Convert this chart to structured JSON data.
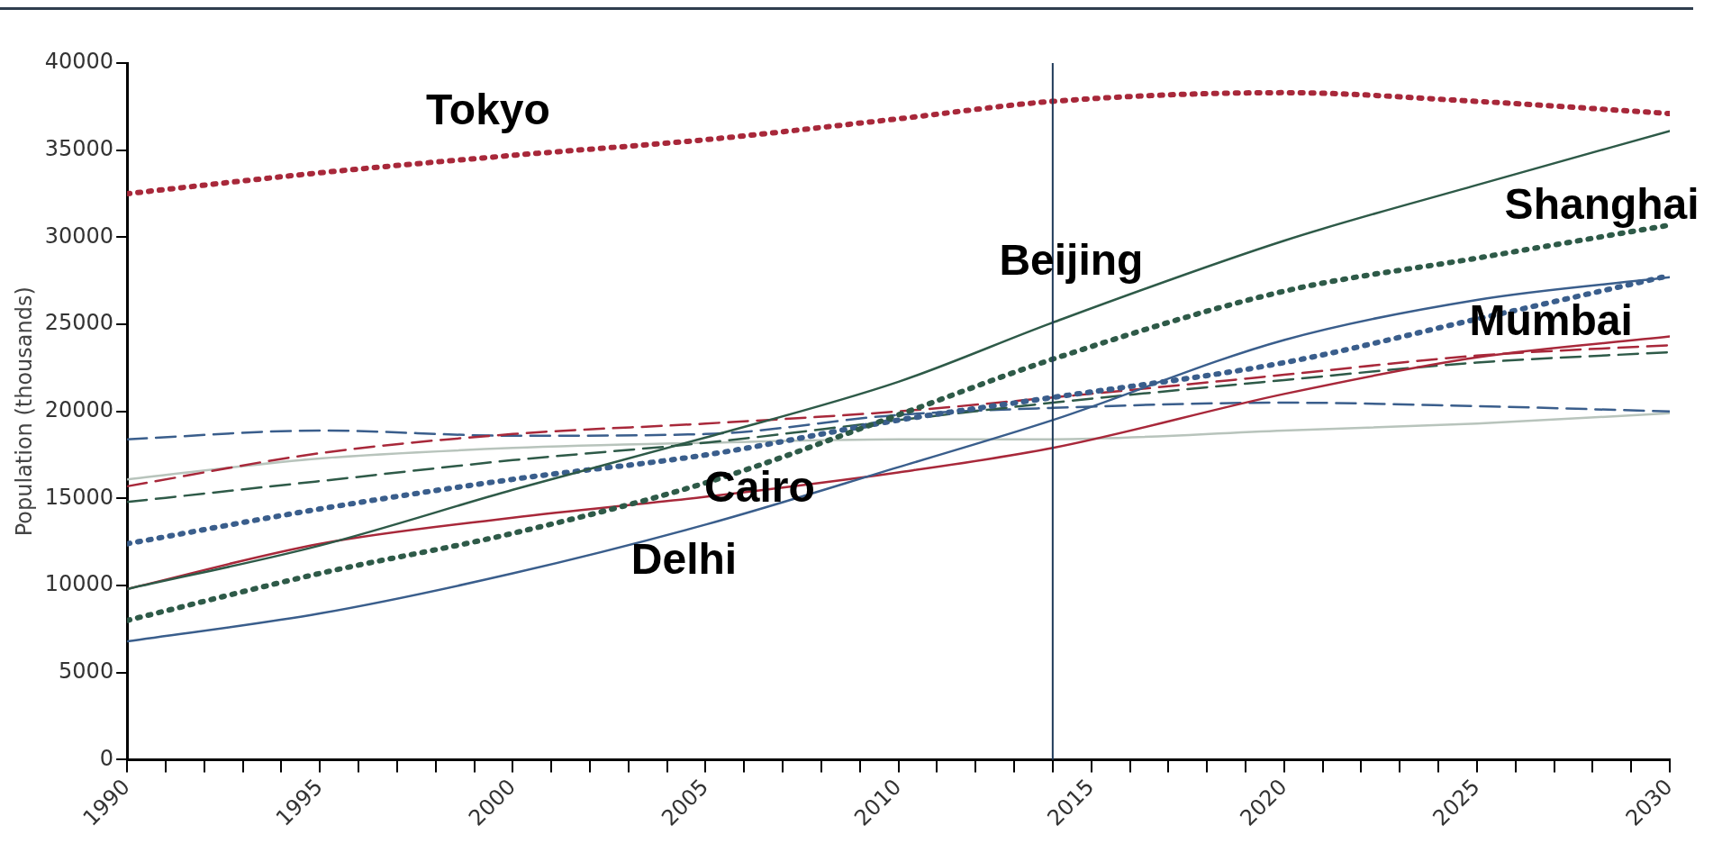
{
  "chart_data": {
    "type": "line",
    "ylabel": "Population (thousands)",
    "x": [
      1990,
      1995,
      2000,
      2005,
      2010,
      2014,
      2020,
      2025,
      2030
    ],
    "xlim": [
      1990,
      2030
    ],
    "xticks": [
      1990,
      {
        "value": 1991,
        "label": null
      },
      {
        "value": 1992,
        "label": null
      },
      {
        "value": 1993,
        "label": null
      },
      {
        "value": 1994,
        "label": null
      },
      1995,
      {
        "value": 1996,
        "label": null
      },
      {
        "value": 1997,
        "label": null
      },
      {
        "value": 1998,
        "label": null
      },
      {
        "value": 1999,
        "label": null
      },
      2000,
      {
        "value": 2001,
        "label": null
      },
      {
        "value": 2002,
        "label": null
      },
      {
        "value": 2003,
        "label": null
      },
      {
        "value": 2004,
        "label": null
      },
      2005,
      {
        "value": 2006,
        "label": null
      },
      {
        "value": 2007,
        "label": null
      },
      {
        "value": 2008,
        "label": null
      },
      {
        "value": 2009,
        "label": null
      },
      2010,
      {
        "value": 2011,
        "label": null
      },
      {
        "value": 2012,
        "label": null
      },
      {
        "value": 2013,
        "label": null
      },
      {
        "value": 2014,
        "label": null
      },
      2015,
      {
        "value": 2016,
        "label": null
      },
      {
        "value": 2017,
        "label": null
      },
      {
        "value": 2018,
        "label": null
      },
      {
        "value": 2019,
        "label": null
      },
      2020,
      {
        "value": 2021,
        "label": null
      },
      {
        "value": 2022,
        "label": null
      },
      {
        "value": 2023,
        "label": null
      },
      {
        "value": 2024,
        "label": null
      },
      2025,
      {
        "value": 2026,
        "label": null
      },
      {
        "value": 2027,
        "label": null
      },
      {
        "value": 2028,
        "label": null
      },
      {
        "value": 2029,
        "label": null
      },
      2030
    ],
    "ylim": [
      0,
      40000
    ],
    "yticks": [
      0,
      5000,
      10000,
      15000,
      20000,
      25000,
      30000,
      35000,
      40000
    ],
    "grid": false,
    "legend": false,
    "marker": "none",
    "series": [
      {
        "color": "#a8283a",
        "line_style": "dotted",
        "values": [
          32500,
          33700,
          34700,
          35600,
          36800,
          37800,
          38300,
          37800,
          37100
        ]
      },
      {
        "color": "#2e5a48",
        "line_style": "solid",
        "values": [
          9800,
          12300,
          15500,
          18500,
          21700,
          25100,
          29800,
          33000,
          36100
        ]
      },
      {
        "color": "#2e5a48",
        "line_style": "dotted",
        "values": [
          8000,
          10700,
          13000,
          15900,
          19800,
          23000,
          26900,
          28800,
          30700
        ]
      },
      {
        "color": "#3a5e8c",
        "line_style": "solid",
        "values": [
          6800,
          8400,
          10700,
          13500,
          16800,
          19500,
          24100,
          26400,
          27700
        ]
      },
      {
        "color": "#3a5e8c",
        "line_style": "dotted",
        "values": [
          12400,
          14400,
          16100,
          17500,
          19500,
          20800,
          22800,
          25300,
          27800
        ]
      },
      {
        "color": "#a8283a",
        "line_style": "solid",
        "values": [
          9800,
          12400,
          13900,
          15100,
          16500,
          17900,
          21000,
          23100,
          24300
        ]
      },
      {
        "color": "#a8283a",
        "line_style": "dashed",
        "values": [
          15700,
          17600,
          18700,
          19300,
          20000,
          20800,
          22100,
          23200,
          23800
        ]
      },
      {
        "color": "#2e5a48",
        "line_style": "dashed",
        "values": [
          14800,
          16000,
          17200,
          18200,
          19500,
          20500,
          21800,
          22800,
          23400
        ]
      },
      {
        "color": "#3a5e8c",
        "line_style": "dashed",
        "values": [
          18400,
          18900,
          18600,
          18700,
          19800,
          20200,
          20500,
          20300,
          20000
        ]
      },
      {
        "color": "#b8c4bc",
        "line_style": "solid",
        "values": [
          16100,
          17300,
          17900,
          18200,
          18400,
          18400,
          18900,
          19300,
          19900
        ]
      }
    ],
    "ref_lines": [
      {
        "axis": "x",
        "value": 2014,
        "color": "#1f3a5a"
      }
    ],
    "annotations": [
      "Tokyo",
      "Beijing",
      "Shanghai",
      "Mumbai",
      "Cairo",
      "Delhi"
    ]
  }
}
